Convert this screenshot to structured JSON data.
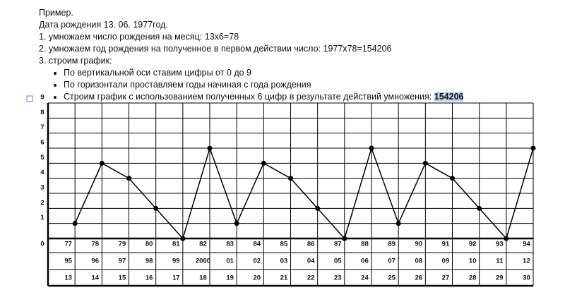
{
  "document": {
    "lines": [
      "Пример.",
      "Дата рождения 13. 06. 1977год.",
      "1. умножаем число рождения на месяц: 13х6=78",
      "2. умножаем год рождения на полученное в первом действии число: 1977х78=154206",
      "3. строим график:"
    ],
    "bullets": [
      "По вертикальной оси ставим цифры от 0 до 9",
      "По горизонтали проставляем годы начиная с года рождения",
      "Строим график с использованием полученных 6 цифр в результате действий умножения:"
    ],
    "highlight": "154206"
  },
  "chart_data": {
    "type": "line",
    "color": "#000000",
    "grid": true,
    "categories": [
      "77",
      "78",
      "79",
      "80",
      "81",
      "82",
      "83",
      "84",
      "85",
      "86",
      "87",
      "88",
      "89",
      "90",
      "91",
      "92",
      "93",
      "94"
    ],
    "x_label_rows": [
      [
        "95",
        "96",
        "97",
        "98",
        "99",
        "2000",
        "01",
        "02",
        "03",
        "04",
        "05",
        "06",
        "07",
        "08",
        "09",
        "10",
        "11",
        "12"
      ],
      [
        "13",
        "14",
        "15",
        "16",
        "17",
        "18",
        "19",
        "20",
        "21",
        "22",
        "23",
        "24",
        "25",
        "26",
        "27",
        "28",
        "29",
        "30"
      ]
    ],
    "values": [
      1,
      5,
      4,
      2,
      0,
      6,
      1,
      5,
      4,
      2,
      0,
      6,
      1,
      5,
      4,
      2,
      0,
      6
    ],
    "ylim": [
      0,
      9
    ],
    "yticks": [
      0,
      1,
      2,
      3,
      4,
      5,
      6,
      7,
      8,
      9
    ]
  }
}
